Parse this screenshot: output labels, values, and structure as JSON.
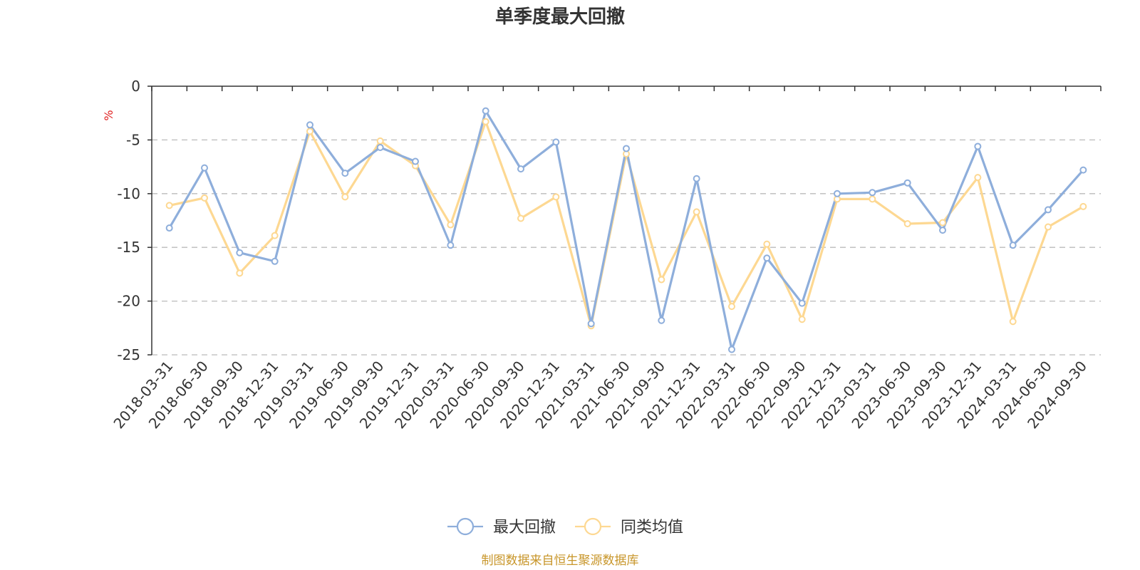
{
  "chart_data": {
    "type": "line",
    "title": "单季度最大回撤",
    "ylabel": "%",
    "xlabel": "",
    "ylim": [
      -25,
      0
    ],
    "yticks": [
      0,
      -5,
      -10,
      -15,
      -20,
      -25
    ],
    "ytick_labels": [
      "0",
      "-5",
      "-10",
      "-15",
      "-20",
      "-25"
    ],
    "grid": true,
    "legend_position": "bottom-center",
    "categories": [
      "2018-03-31",
      "2018-06-30",
      "2018-09-30",
      "2018-12-31",
      "2019-03-31",
      "2019-06-30",
      "2019-09-30",
      "2019-12-31",
      "2020-03-31",
      "2020-06-30",
      "2020-09-30",
      "2020-12-31",
      "2021-03-31",
      "2021-06-30",
      "2021-09-30",
      "2021-12-31",
      "2022-03-31",
      "2022-06-30",
      "2022-09-30",
      "2022-12-31",
      "2023-03-31",
      "2023-06-30",
      "2023-09-30",
      "2023-12-31",
      "2024-03-31",
      "2024-06-30",
      "2024-09-30"
    ],
    "series": [
      {
        "name": "最大回撤",
        "color": "#8eaedb",
        "values": [
          -13.2,
          -7.6,
          -15.5,
          -16.3,
          -3.6,
          -8.1,
          -5.7,
          -7.0,
          -14.8,
          -2.3,
          -7.7,
          -5.2,
          -22.1,
          -5.8,
          -21.8,
          -8.6,
          -24.5,
          -16.0,
          -20.2,
          -10.0,
          -9.9,
          -9.0,
          -13.4,
          -5.6,
          -14.8,
          -11.5,
          -7.8
        ]
      },
      {
        "name": "同类均值",
        "color": "#fdd892",
        "values": [
          -11.1,
          -10.4,
          -17.4,
          -13.9,
          -4.2,
          -10.3,
          -5.1,
          -7.4,
          -12.9,
          -3.3,
          -12.3,
          -10.3,
          -22.3,
          -6.3,
          -18.0,
          -11.7,
          -20.5,
          -14.7,
          -21.7,
          -10.5,
          -10.5,
          -12.8,
          -12.7,
          -8.5,
          -21.9,
          -13.1,
          -11.2
        ]
      }
    ]
  },
  "footer": {
    "source": "制图数据来自恒生聚源数据库"
  }
}
